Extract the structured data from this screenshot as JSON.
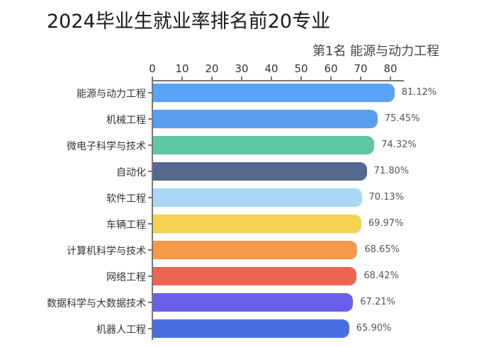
{
  "header": {
    "title": "2024毕业生就业率排名前20专业",
    "subtitle": "第1名 能源与动力工程"
  },
  "chart_data": {
    "type": "bar",
    "orientation": "horizontal",
    "title": "2024毕业生就业率排名前20专业",
    "subtitle": "第1名 能源与动力工程",
    "xlabel": "",
    "ylabel": "",
    "xlim": [
      0,
      85
    ],
    "xticks": [
      "0",
      "10",
      "20",
      "30",
      "40",
      "50",
      "60",
      "70",
      "80"
    ],
    "axis_position": "top",
    "grid": false,
    "legend": null,
    "categories": [
      "能源与动力工程",
      "机械工程",
      "微电子科学与技术",
      "自动化",
      "软件工程",
      "车辆工程",
      "计算机科学与技术",
      "网络工程",
      "数据科学与大数据技术",
      "机器人工程"
    ],
    "values": [
      81.12,
      75.45,
      74.32,
      71.8,
      70.13,
      69.97,
      68.65,
      68.42,
      67.21,
      65.9
    ],
    "value_labels": [
      "81.12%",
      "75.45%",
      "74.32%",
      "71.80%",
      "70.13%",
      "69.97%",
      "68.65%",
      "68.42%",
      "67.21%",
      "65.90%"
    ],
    "colors": [
      "#5aa2f5",
      "#5a9ef2",
      "#5fc6a3",
      "#55698f",
      "#a9d8f7",
      "#f5d34f",
      "#f5994a",
      "#ec6552",
      "#6a5fe6",
      "#4a70e0"
    ]
  }
}
